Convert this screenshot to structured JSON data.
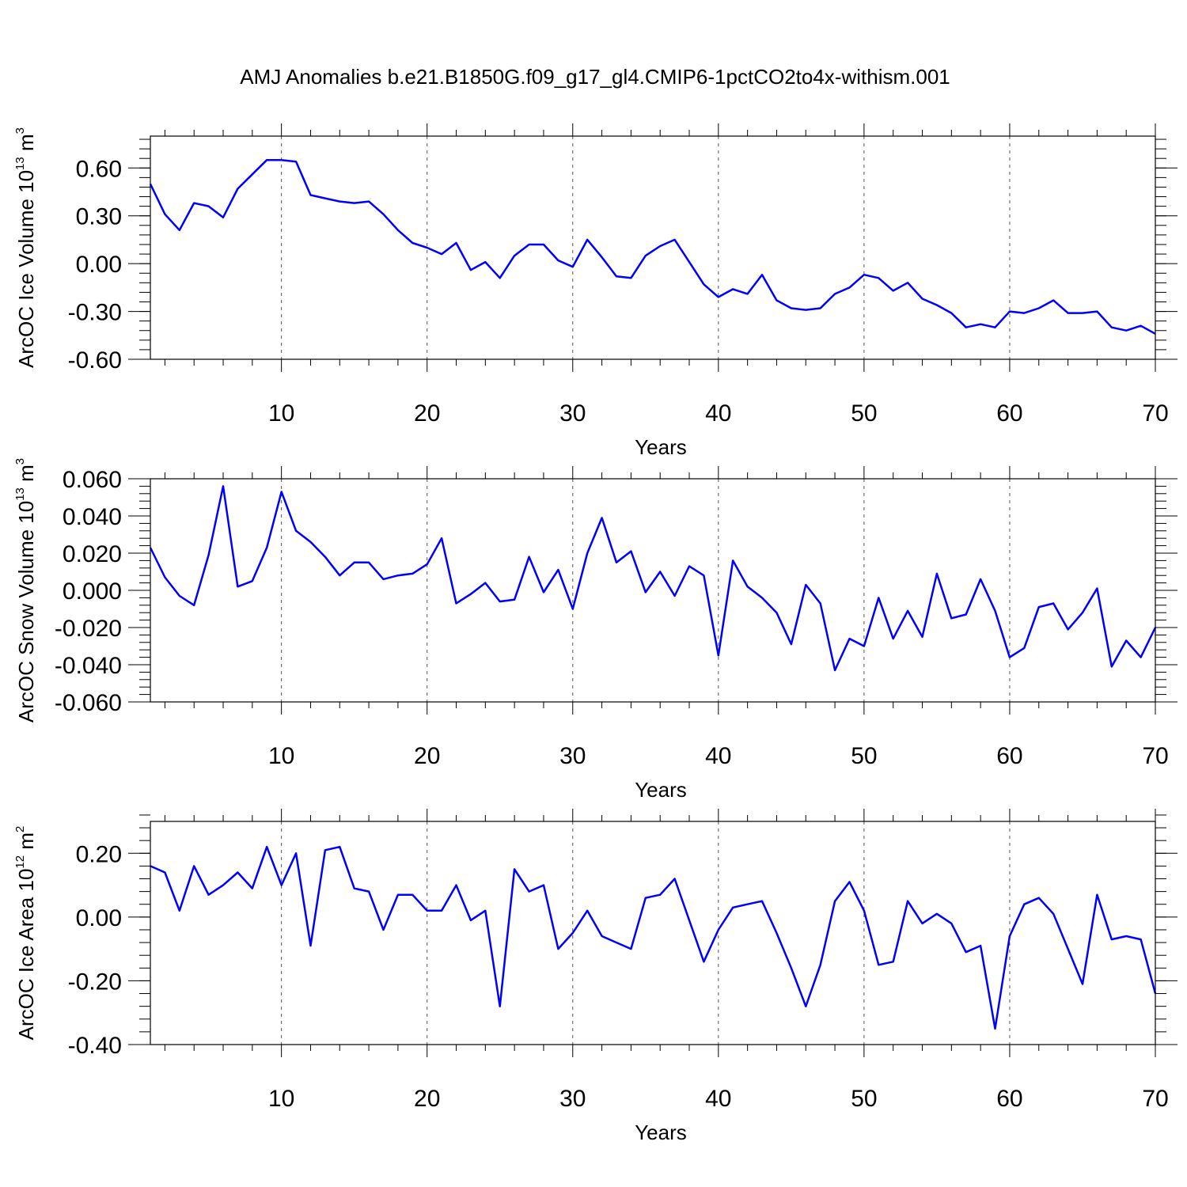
{
  "title": "AMJ Anomalies b.e21.B1850G.f09_g17_gl4.CMIP6-1pctCO2to4x-withism.001",
  "line_color": "#0000ff",
  "chart_data": [
    {
      "type": "line",
      "xlabel": "Years",
      "ylabel": {
        "base": "ArcOC Ice Volume 10",
        "exp": "13",
        "unit": " m",
        "unit_exp": "3"
      },
      "xlim": [
        1,
        70
      ],
      "ylim": [
        -0.6,
        0.8
      ],
      "xticks": [
        10,
        20,
        30,
        40,
        50,
        60,
        70
      ],
      "xtick_labels": [
        "10",
        "20",
        "30",
        "40",
        "50",
        "60",
        "70"
      ],
      "yticks": [
        -0.6,
        -0.3,
        0.0,
        0.3,
        0.6
      ],
      "ytick_labels": [
        "-0.60",
        "-0.30",
        "0.00",
        "0.30",
        "0.60"
      ],
      "grid": "vertical dashed at x major ticks",
      "series": [
        {
          "x": [
            1,
            2,
            3,
            4,
            5,
            6,
            7,
            8,
            9,
            10,
            11,
            12,
            13,
            14,
            15,
            16,
            17,
            18,
            19,
            20,
            21,
            22,
            23,
            24,
            25,
            26,
            27,
            28,
            29,
            30,
            31,
            32,
            33,
            34,
            35,
            36,
            37,
            38,
            39,
            40,
            41,
            42,
            43,
            44,
            45,
            46,
            47,
            48,
            49,
            50,
            51,
            52,
            53,
            54,
            55,
            56,
            57,
            58,
            59,
            60,
            61,
            62,
            63,
            64,
            65,
            66,
            67,
            68,
            69,
            70
          ],
          "values": [
            0.5,
            0.31,
            0.21,
            0.38,
            0.36,
            0.29,
            0.47,
            0.56,
            0.65,
            0.65,
            0.64,
            0.43,
            0.41,
            0.39,
            0.38,
            0.39,
            0.31,
            0.21,
            0.13,
            0.1,
            0.06,
            0.13,
            -0.04,
            0.01,
            -0.09,
            0.05,
            0.12,
            0.12,
            0.02,
            -0.02,
            0.15,
            0.04,
            -0.08,
            -0.09,
            0.05,
            0.11,
            0.15,
            0.01,
            -0.13,
            -0.21,
            -0.16,
            -0.19,
            -0.07,
            -0.23,
            -0.28,
            -0.29,
            -0.28,
            -0.19,
            -0.15,
            -0.07,
            -0.09,
            -0.17,
            -0.12,
            -0.22,
            -0.26,
            -0.31,
            -0.4,
            -0.38,
            -0.4,
            -0.3,
            -0.31,
            -0.28,
            -0.23,
            -0.31,
            -0.31,
            -0.3,
            -0.4,
            -0.42,
            -0.39,
            -0.44
          ]
        }
      ]
    },
    {
      "type": "line",
      "xlabel": "Years",
      "ylabel": {
        "base": "ArcOC Snow Volume 10",
        "exp": "13",
        "unit": " m",
        "unit_exp": "3"
      },
      "xlim": [
        1,
        70
      ],
      "ylim": [
        -0.06,
        0.06
      ],
      "xticks": [
        10,
        20,
        30,
        40,
        50,
        60,
        70
      ],
      "xtick_labels": [
        "10",
        "20",
        "30",
        "40",
        "50",
        "60",
        "70"
      ],
      "yticks": [
        -0.06,
        -0.04,
        -0.02,
        0.0,
        0.02,
        0.04,
        0.06
      ],
      "ytick_labels": [
        "-0.060",
        "-0.040",
        "-0.020",
        "0.000",
        "0.020",
        "0.040",
        "0.060"
      ],
      "grid": "vertical dashed at x major ticks",
      "series": [
        {
          "x": [
            1,
            2,
            3,
            4,
            5,
            6,
            7,
            8,
            9,
            10,
            11,
            12,
            13,
            14,
            15,
            16,
            17,
            18,
            19,
            20,
            21,
            22,
            23,
            24,
            25,
            26,
            27,
            28,
            29,
            30,
            31,
            32,
            33,
            34,
            35,
            36,
            37,
            38,
            39,
            40,
            41,
            42,
            43,
            44,
            45,
            46,
            47,
            48,
            49,
            50,
            51,
            52,
            53,
            54,
            55,
            56,
            57,
            58,
            59,
            60,
            61,
            62,
            63,
            64,
            65,
            66,
            67,
            68,
            69,
            70
          ],
          "values": [
            0.023,
            0.007,
            -0.003,
            -0.008,
            0.019,
            0.056,
            0.002,
            0.005,
            0.023,
            0.053,
            0.032,
            0.026,
            0.018,
            0.008,
            0.015,
            0.015,
            0.006,
            0.008,
            0.009,
            0.014,
            0.028,
            -0.007,
            -0.002,
            0.004,
            -0.006,
            -0.005,
            0.018,
            -0.001,
            0.011,
            -0.01,
            0.02,
            0.039,
            0.015,
            0.021,
            -0.001,
            0.01,
            -0.003,
            0.013,
            0.008,
            -0.035,
            0.016,
            0.002,
            -0.004,
            -0.012,
            -0.029,
            0.003,
            -0.007,
            -0.043,
            -0.026,
            -0.03,
            -0.004,
            -0.026,
            -0.011,
            -0.025,
            0.009,
            -0.015,
            -0.013,
            0.006,
            -0.011,
            -0.036,
            -0.031,
            -0.009,
            -0.007,
            -0.021,
            -0.012,
            0.001,
            -0.041,
            -0.027,
            -0.036,
            -0.02
          ]
        }
      ]
    },
    {
      "type": "line",
      "xlabel": "Years",
      "ylabel": {
        "base": "ArcOC Ice Area 10",
        "exp": "12",
        "unit": " m",
        "unit_exp": "2"
      },
      "xlim": [
        1,
        70
      ],
      "ylim": [
        -0.4,
        0.3
      ],
      "xticks": [
        10,
        20,
        30,
        40,
        50,
        60,
        70
      ],
      "xtick_labels": [
        "10",
        "20",
        "30",
        "40",
        "50",
        "60",
        "70"
      ],
      "yticks": [
        -0.4,
        -0.2,
        0.0,
        0.2
      ],
      "ytick_labels": [
        "-0.40",
        "-0.20",
        "0.00",
        "0.20"
      ],
      "grid": "vertical dashed at x major ticks",
      "series": [
        {
          "x": [
            1,
            2,
            3,
            4,
            5,
            6,
            7,
            8,
            9,
            10,
            11,
            12,
            13,
            14,
            15,
            16,
            17,
            18,
            19,
            20,
            21,
            22,
            23,
            24,
            25,
            26,
            27,
            28,
            29,
            30,
            31,
            32,
            33,
            34,
            35,
            36,
            37,
            38,
            39,
            40,
            41,
            42,
            43,
            44,
            45,
            46,
            47,
            48,
            49,
            50,
            51,
            52,
            53,
            54,
            55,
            56,
            57,
            58,
            59,
            60,
            61,
            62,
            63,
            64,
            65,
            66,
            67,
            68,
            69,
            70
          ],
          "values": [
            0.16,
            0.14,
            0.02,
            0.16,
            0.07,
            0.1,
            0.14,
            0.09,
            0.22,
            0.1,
            0.2,
            -0.09,
            0.21,
            0.22,
            0.09,
            0.08,
            -0.04,
            0.07,
            0.07,
            0.02,
            0.02,
            0.1,
            -0.01,
            0.02,
            -0.28,
            0.15,
            0.08,
            0.1,
            -0.1,
            -0.05,
            0.02,
            -0.06,
            -0.08,
            -0.1,
            0.06,
            0.07,
            0.12,
            -0.01,
            -0.14,
            -0.04,
            0.03,
            0.04,
            0.05,
            -0.05,
            -0.16,
            -0.28,
            -0.15,
            0.05,
            0.11,
            0.02,
            -0.15,
            -0.14,
            0.05,
            -0.02,
            0.01,
            -0.02,
            -0.11,
            -0.09,
            -0.35,
            -0.06,
            0.04,
            0.06,
            0.01,
            -0.1,
            -0.21,
            0.07,
            -0.07,
            -0.06,
            -0.07,
            -0.24
          ]
        }
      ]
    }
  ]
}
